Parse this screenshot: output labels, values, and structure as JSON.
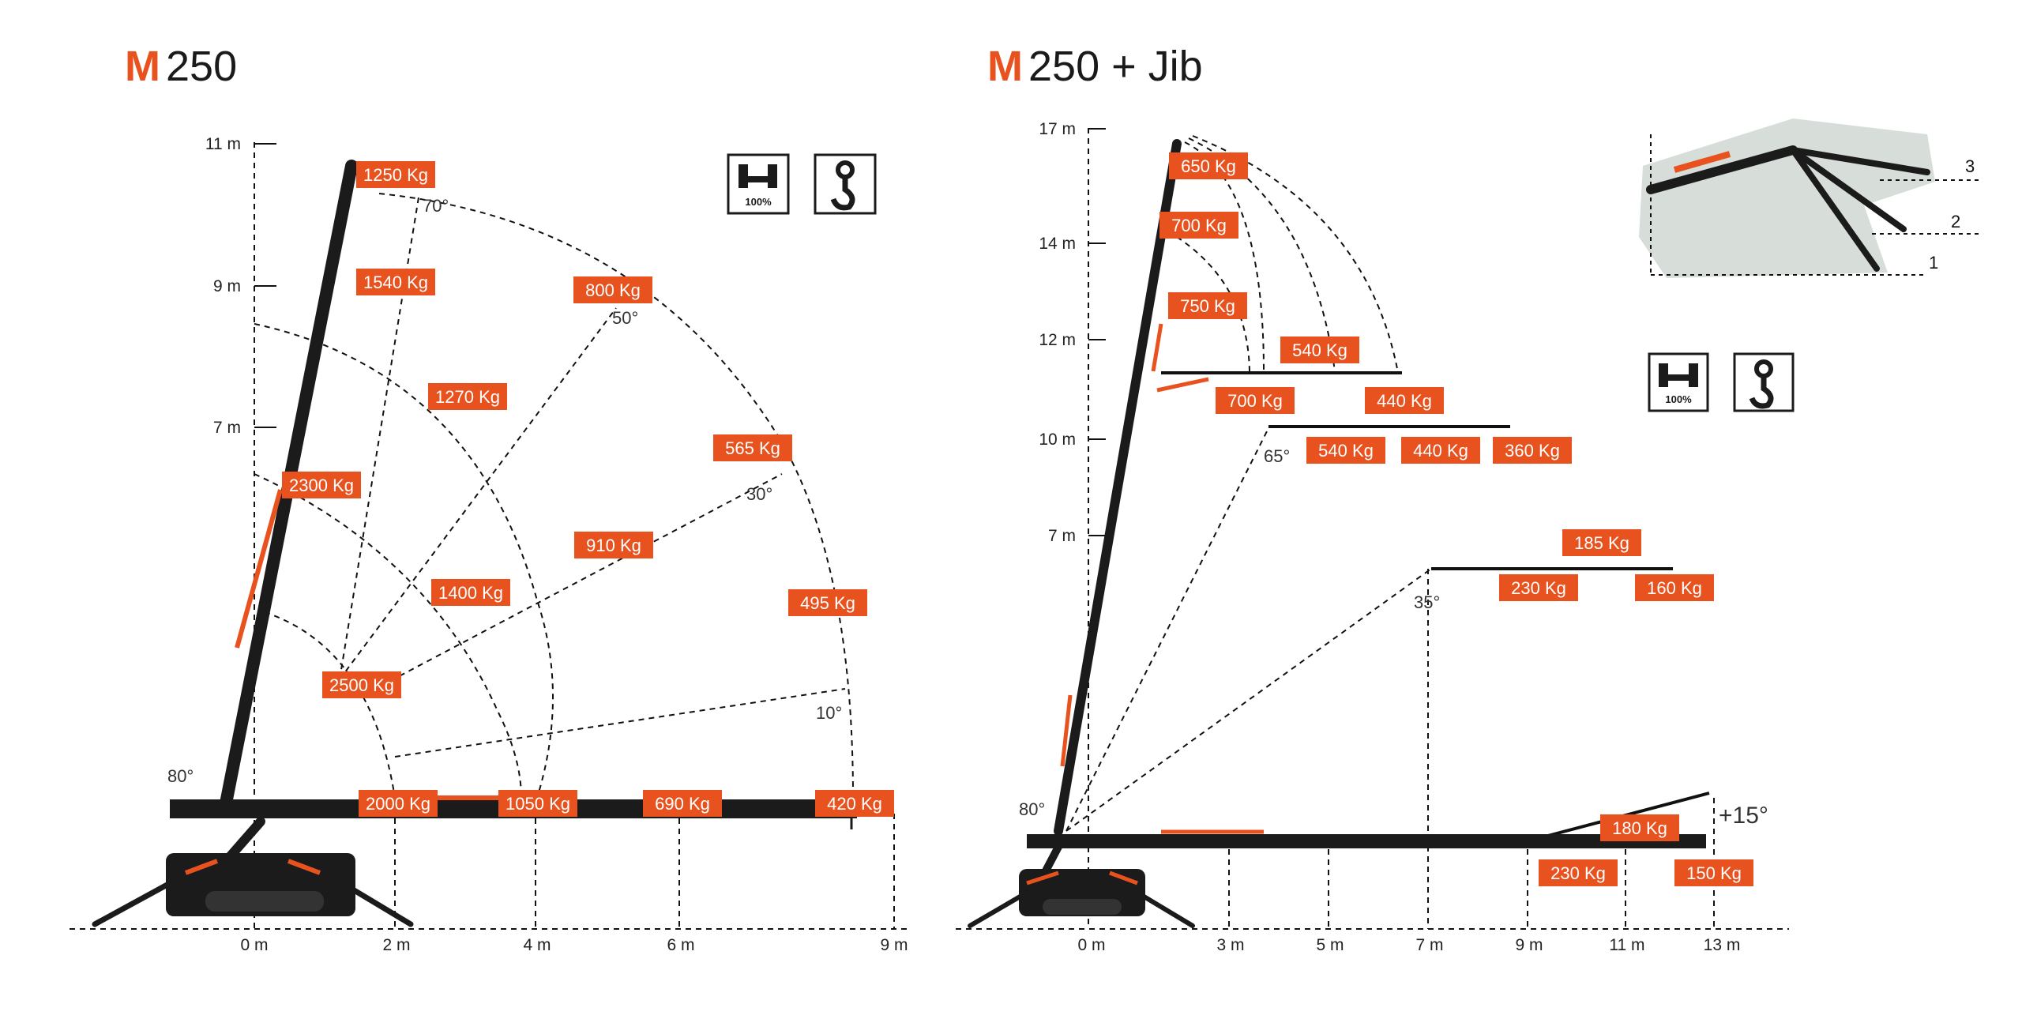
{
  "left": {
    "title_prefix": "M",
    "title_rest": "250",
    "y_ticks": [
      "11 m",
      "9 m",
      "7 m"
    ],
    "x_ticks": [
      "0 m",
      "2 m",
      "4 m",
      "6 m",
      "9 m"
    ],
    "angles": [
      "70°",
      "50°",
      "30°",
      "10°",
      "80°"
    ],
    "loads": [
      "1250 Kg",
      "1540 Kg",
      "800 Kg",
      "1270 Kg",
      "565 Kg",
      "2300 Kg",
      "910 Kg",
      "1400 Kg",
      "495 Kg",
      "2500 Kg",
      "2000 Kg",
      "1050 Kg",
      "690 Kg",
      "420 Kg"
    ]
  },
  "right": {
    "title_prefix": "M",
    "title_rest": "250 + Jib",
    "y_ticks": [
      "17 m",
      "14 m",
      "12 m",
      "10 m",
      "7 m"
    ],
    "x_ticks": [
      "0 m",
      "3 m",
      "5 m",
      "7 m",
      "9 m",
      "11 m",
      "13 m"
    ],
    "angles": [
      "65°",
      "35°",
      "80°",
      "+15°"
    ],
    "loads": [
      "650 Kg",
      "700 Kg",
      "750 Kg",
      "540 Kg",
      "700 Kg",
      "440 Kg",
      "540 Kg",
      "440 Kg",
      "360 Kg",
      "185 Kg",
      "230 Kg",
      "160 Kg",
      "180 Kg",
      "230 Kg",
      "150 Kg"
    ],
    "config_numbers": [
      "3",
      "2",
      "1"
    ]
  },
  "badges": {
    "outrigger_label": "100%"
  },
  "icons": [
    "outrigger-100-icon",
    "hook-icon"
  ],
  "colors": {
    "accent": "#e8521e",
    "boom": "#1b1b1b",
    "background": "#ffffff"
  }
}
